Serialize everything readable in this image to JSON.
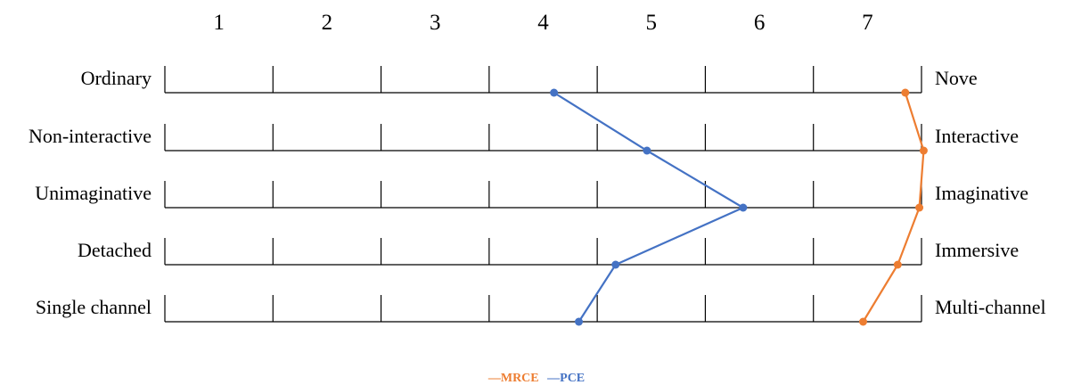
{
  "chart_data": {
    "type": "line",
    "scale_labels": [
      "1",
      "2",
      "3",
      "4",
      "5",
      "6",
      "7"
    ],
    "xlim": [
      1,
      7
    ],
    "rows": [
      {
        "left": "Ordinary",
        "right": "Nove"
      },
      {
        "left": "Non-interactive",
        "right": "Interactive"
      },
      {
        "left": "Unimaginative",
        "right": "Imaginative"
      },
      {
        "left": "Detached",
        "right": "Immersive"
      },
      {
        "left": "Single channel",
        "right": "Multi-channel"
      }
    ],
    "series": [
      {
        "name": "PCE",
        "color": "#4472C4",
        "values": [
          4.1,
          4.96,
          5.85,
          4.67,
          4.33
        ]
      },
      {
        "name": "MRCE",
        "color": "#ED7D31",
        "values": [
          7.35,
          7.52,
          7.48,
          7.28,
          6.96
        ]
      }
    ],
    "legend": {
      "position": "bottom-center",
      "items": [
        {
          "prefix": "—",
          "name": "MRCE",
          "color": "#ED7D31"
        },
        {
          "prefix": "—",
          "name": "PCE",
          "color": "#4472C4"
        }
      ]
    }
  }
}
